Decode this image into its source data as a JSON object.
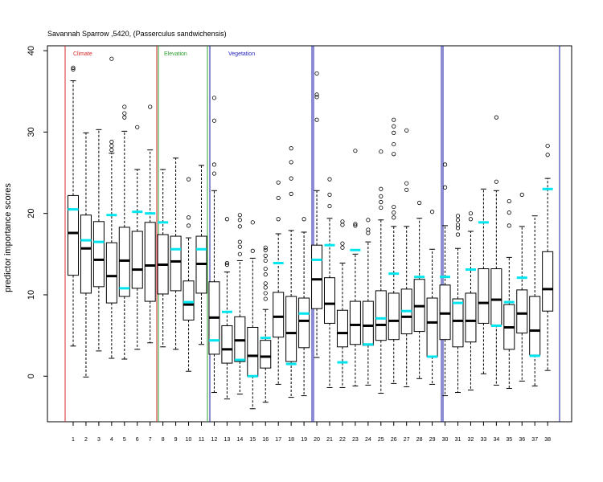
{
  "chart_data": {
    "type": "box",
    "title": "Savannah Sparrow ,5420, (Passerculus sandwichensis)",
    "xlabel": "",
    "ylabel": "predictor importance scores",
    "ylim": [
      -5.6,
      40.6
    ],
    "yticks": [
      0,
      10,
      20,
      30,
      40
    ],
    "categories": [
      "1",
      "2",
      "3",
      "4",
      "5",
      "6",
      "7",
      "8",
      "9",
      "10",
      "11",
      "12",
      "13",
      "14",
      "15",
      "16",
      "17",
      "18",
      "19",
      "20",
      "21",
      "22",
      "23",
      "24",
      "25",
      "26",
      "27",
      "28",
      "29",
      "30",
      "31",
      "32",
      "33",
      "34",
      "35",
      "36",
      "37",
      "38"
    ],
    "groups": [
      {
        "label": "Climate",
        "color": "#d62728",
        "range": [
          1,
          7
        ]
      },
      {
        "label": "Elevation",
        "color": "#2ca02c",
        "range": [
          8,
          11
        ]
      },
      {
        "label": "Vegetation",
        "color": "#1f1fbf",
        "range": [
          12,
          38
        ]
      }
    ],
    "group_separators_color": "#1a1aa6",
    "highlight_color": "#00e5ee",
    "boxes": [
      {
        "min": 3.7,
        "q1": 12.4,
        "median": 17.6,
        "q3": 22.2,
        "max": 36.3,
        "highlight": 20.5,
        "outliers": [
          37.7,
          37.9
        ]
      },
      {
        "min": -0.1,
        "q1": 10.2,
        "median": 15.7,
        "q3": 19.8,
        "max": 29.9,
        "highlight": 16.7,
        "outliers": []
      },
      {
        "min": 3.1,
        "q1": 11.0,
        "median": 14.3,
        "q3": 19.0,
        "max": 30.3,
        "highlight": 16.5,
        "outliers": []
      },
      {
        "min": 2.2,
        "q1": 9.0,
        "median": 12.3,
        "q3": 16.4,
        "max": 27.4,
        "highlight": 19.8,
        "outliers": [
          27.8,
          28.3,
          28.8,
          39.0
        ]
      },
      {
        "min": 2.1,
        "q1": 9.8,
        "median": 14.2,
        "q3": 18.3,
        "max": 30.1,
        "highlight": 10.8,
        "outliers": [
          31.8,
          32.3,
          33.1
        ]
      },
      {
        "min": 3.3,
        "q1": 10.8,
        "median": 13.1,
        "q3": 17.8,
        "max": 25.4,
        "highlight": 20.2,
        "outliers": [
          30.6
        ]
      },
      {
        "min": 4.1,
        "q1": 9.2,
        "median": 13.6,
        "q3": 18.9,
        "max": 27.8,
        "highlight": 20.0,
        "outliers": [
          33.1
        ]
      },
      {
        "min": 3.6,
        "q1": 10.1,
        "median": 13.7,
        "q3": 17.4,
        "max": 25.4,
        "highlight": 18.9,
        "outliers": []
      },
      {
        "min": 3.3,
        "q1": 10.5,
        "median": 14.1,
        "q3": 17.2,
        "max": 26.8,
        "highlight": 15.6,
        "outliers": []
      },
      {
        "min": 0.6,
        "q1": 6.9,
        "median": 8.8,
        "q3": 11.7,
        "max": 17.0,
        "highlight": 9.1,
        "outliers": [
          18.5,
          19.5,
          24.2
        ]
      },
      {
        "min": 3.9,
        "q1": 10.2,
        "median": 13.8,
        "q3": 17.2,
        "max": 25.9,
        "highlight": 15.6,
        "outliers": []
      },
      {
        "min": -2.0,
        "q1": 2.7,
        "median": 7.2,
        "q3": 11.6,
        "max": 22.8,
        "highlight": 4.4,
        "outliers": [
          24.9,
          26.0,
          31.4,
          34.2
        ]
      },
      {
        "min": -2.8,
        "q1": 1.6,
        "median": 3.3,
        "q3": 6.2,
        "max": 12.8,
        "highlight": 7.9,
        "outliers": [
          13.7,
          13.9,
          19.3
        ]
      },
      {
        "min": -2.2,
        "q1": 1.8,
        "median": 4.4,
        "q3": 7.3,
        "max": 14.2,
        "highlight": 2.0,
        "outliers": [
          15.0,
          15.9,
          16.5,
          18.4,
          19.2,
          19.8
        ]
      },
      {
        "min": -4.0,
        "q1": 0.0,
        "median": 2.5,
        "q3": 6.0,
        "max": 14.5,
        "highlight": 0.0,
        "outliers": [
          15.4,
          18.9
        ]
      },
      {
        "min": -3.2,
        "q1": 1.0,
        "median": 2.4,
        "q3": 4.4,
        "max": 8.2,
        "highlight": 4.7,
        "outliers": [
          9.5,
          10.2,
          10.9,
          11.4,
          12.5,
          13.2,
          14.2,
          14.8,
          15.5,
          15.8
        ]
      },
      {
        "min": -1.0,
        "q1": 4.8,
        "median": 7.3,
        "q3": 10.3,
        "max": 17.5,
        "highlight": 13.9,
        "outliers": [
          19.3,
          21.9,
          23.8
        ]
      },
      {
        "min": -2.6,
        "q1": 1.8,
        "median": 5.3,
        "q3": 9.8,
        "max": 17.9,
        "highlight": 1.5,
        "outliers": [
          22.4,
          24.3,
          26.3,
          28.0
        ]
      },
      {
        "min": -2.4,
        "q1": 3.5,
        "median": 6.8,
        "q3": 9.6,
        "max": 17.7,
        "highlight": 7.7,
        "outliers": [
          19.3
        ]
      },
      {
        "min": 2.3,
        "q1": 8.3,
        "median": 11.9,
        "q3": 16.1,
        "max": 22.8,
        "highlight": 14.3,
        "outliers": [
          31.5,
          34.3,
          34.6,
          37.2
        ]
      },
      {
        "min": -1.4,
        "q1": 6.5,
        "median": 8.9,
        "q3": 12.1,
        "max": 19.4,
        "highlight": 16.1,
        "outliers": [
          20.9,
          22.3,
          24.2
        ]
      },
      {
        "min": -1.4,
        "q1": 3.6,
        "median": 5.3,
        "q3": 8.1,
        "max": 13.9,
        "highlight": 1.7,
        "outliers": [
          15.8,
          16.3,
          18.6,
          19.0
        ]
      },
      {
        "min": -1.2,
        "q1": 3.9,
        "median": 6.3,
        "q3": 9.2,
        "max": 15.0,
        "highlight": 15.5,
        "outliers": [
          18.5,
          18.7,
          27.7
        ]
      },
      {
        "min": -1.1,
        "q1": 3.8,
        "median": 6.2,
        "q3": 9.2,
        "max": 16.5,
        "highlight": 3.9,
        "outliers": [
          17.6,
          18.0,
          19.2
        ]
      },
      {
        "min": -2.1,
        "q1": 4.4,
        "median": 6.3,
        "q3": 10.5,
        "max": 19.2,
        "highlight": 7.1,
        "outliers": [
          20.7,
          21.4,
          22.1,
          23.0,
          27.6
        ]
      },
      {
        "min": -0.9,
        "q1": 4.5,
        "median": 6.8,
        "q3": 10.2,
        "max": 18.4,
        "highlight": 12.6,
        "outliers": [
          19.5,
          20.1,
          20.8,
          27.3,
          28.5,
          29.9,
          30.7,
          31.5
        ]
      },
      {
        "min": -1.3,
        "q1": 5.2,
        "median": 7.3,
        "q3": 10.7,
        "max": 18.4,
        "highlight": 8.0,
        "outliers": [
          22.9,
          23.7,
          30.2
        ]
      },
      {
        "min": -0.3,
        "q1": 5.5,
        "median": 8.6,
        "q3": 11.9,
        "max": 19.4,
        "highlight": 12.2,
        "outliers": [
          21.3
        ]
      },
      {
        "min": -1.0,
        "q1": 2.4,
        "median": 6.6,
        "q3": 9.6,
        "max": 15.6,
        "highlight": 2.4,
        "outliers": [
          20.2
        ]
      },
      {
        "min": -2.4,
        "q1": 4.5,
        "median": 7.7,
        "q3": 11.2,
        "max": 18.5,
        "highlight": 12.2,
        "outliers": [
          23.2,
          26.0
        ]
      },
      {
        "min": -2.0,
        "q1": 3.6,
        "median": 6.8,
        "q3": 9.5,
        "max": 15.7,
        "highlight": 9.0,
        "outliers": [
          17.4,
          18.2,
          18.6,
          19.2,
          19.7
        ]
      },
      {
        "min": -1.7,
        "q1": 4.2,
        "median": 6.8,
        "q3": 10.2,
        "max": 17.8,
        "highlight": 13.1,
        "outliers": [
          19.3,
          20.0
        ]
      },
      {
        "min": 0.3,
        "q1": 6.5,
        "median": 9.0,
        "q3": 13.2,
        "max": 23.0,
        "highlight": 18.9,
        "outliers": []
      },
      {
        "min": -1.1,
        "q1": 6.3,
        "median": 9.4,
        "q3": 13.2,
        "max": 22.8,
        "highlight": 6.2,
        "outliers": [
          23.9,
          31.8
        ]
      },
      {
        "min": -1.5,
        "q1": 3.3,
        "median": 6.0,
        "q3": 8.8,
        "max": 14.6,
        "highlight": 9.1,
        "outliers": [
          18.5,
          20.1,
          21.5
        ]
      },
      {
        "min": -0.6,
        "q1": 5.3,
        "median": 7.7,
        "q3": 10.6,
        "max": 18.4,
        "highlight": 12.1,
        "outliers": [
          22.3
        ]
      },
      {
        "min": -1.2,
        "q1": 2.6,
        "median": 5.6,
        "q3": 9.8,
        "max": 19.7,
        "highlight": 2.5,
        "outliers": []
      },
      {
        "min": 0.7,
        "q1": 8.0,
        "median": 10.7,
        "q3": 15.3,
        "max": 24.3,
        "highlight": 23.0,
        "outliers": [
          27.2,
          28.3
        ]
      }
    ]
  }
}
